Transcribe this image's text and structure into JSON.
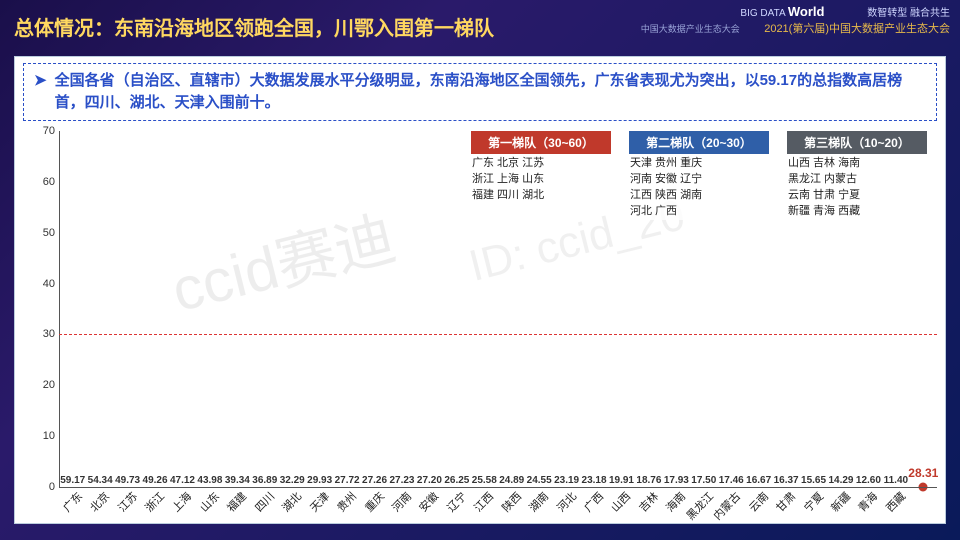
{
  "header": {
    "title": "总体情况：东南沿海地区领跑全国，川鄂入围第一梯队",
    "brand_prefix": "BIG DATA ",
    "brand_main": "World",
    "brand_sub": "中国大数据产业生态大会",
    "slogan": "数智转型 融合共生",
    "event": "2021(第六届)中国大数据产业生态大会"
  },
  "description": "全国各省（自治区、直辖市）大数据发展水平分级明显，东南沿海地区全国领先，广东省表现尤为突出，以59.17的总指数高居榜首，四川、湖北、天津入围前十。",
  "watermark1": "ccid赛迪",
  "watermark2": "ID: ccid_20",
  "chart": {
    "type": "bar",
    "ylim": [
      0,
      70
    ],
    "ytick_step": 10,
    "ref_line_value": 30,
    "avg_point": {
      "value": 28.31,
      "label": "28.31"
    },
    "tiers": [
      {
        "name": "第一梯队（30~60）",
        "color": "#c0392b",
        "provinces": "广东 北京 江苏\n浙江 上海 山东\n福建 四川 湖北"
      },
      {
        "name": "第二梯队（20~30）",
        "color": "#2f5fa8",
        "provinces": "天津 贵州 重庆\n河南 安徽 辽宁\n江西 陕西 湖南\n河北 广西"
      },
      {
        "name": "第三梯队（10~20）",
        "color": "#555b63",
        "provinces": "山西 吉林 海南\n黑龙江 内蒙古\n云南 甘肃 宁夏\n新疆 青海 西藏"
      }
    ],
    "tier1_color": "#c0392b",
    "tier1_alt_color": "#f1a93b",
    "tier2_color": "#2f5fa8",
    "tier3_color": "#7a3a9a",
    "bars": [
      {
        "label": "广东",
        "value": 59.17,
        "tier": 1,
        "alt": false
      },
      {
        "label": "北京",
        "value": 54.34,
        "tier": 1,
        "alt": false
      },
      {
        "label": "江苏",
        "value": 49.73,
        "tier": 1,
        "alt": false
      },
      {
        "label": "浙江",
        "value": 49.26,
        "tier": 1,
        "alt": false
      },
      {
        "label": "上海",
        "value": 47.12,
        "tier": 1,
        "alt": false
      },
      {
        "label": "山东",
        "value": 43.98,
        "tier": 1,
        "alt": false
      },
      {
        "label": "福建",
        "value": 39.34,
        "tier": 1,
        "alt": true
      },
      {
        "label": "四川",
        "value": 36.89,
        "tier": 1,
        "alt": true
      },
      {
        "label": "湖北",
        "value": 32.29,
        "tier": 1,
        "alt": true
      },
      {
        "label": "天津",
        "value": 29.93,
        "tier": 2
      },
      {
        "label": "贵州",
        "value": 27.72,
        "tier": 2
      },
      {
        "label": "重庆",
        "value": 27.26,
        "tier": 2
      },
      {
        "label": "河南",
        "value": 27.23,
        "tier": 2
      },
      {
        "label": "安徽",
        "value": 27.2,
        "tier": 2
      },
      {
        "label": "辽宁",
        "value": 26.25,
        "tier": 2
      },
      {
        "label": "江西",
        "value": 25.58,
        "tier": 2
      },
      {
        "label": "陕西",
        "value": 24.89,
        "tier": 2
      },
      {
        "label": "湖南",
        "value": 24.55,
        "tier": 2
      },
      {
        "label": "河北",
        "value": 23.19,
        "tier": 2
      },
      {
        "label": "广西",
        "value": 23.18,
        "tier": 2
      },
      {
        "label": "山西",
        "value": 19.91,
        "tier": 3
      },
      {
        "label": "吉林",
        "value": 18.76,
        "tier": 3
      },
      {
        "label": "海南",
        "value": 17.93,
        "tier": 3
      },
      {
        "label": "黑龙江",
        "value": 17.5,
        "tier": 3
      },
      {
        "label": "内蒙古",
        "value": 17.46,
        "tier": 3
      },
      {
        "label": "云南",
        "value": 16.67,
        "tier": 3
      },
      {
        "label": "甘肃",
        "value": 16.37,
        "tier": 3
      },
      {
        "label": "宁夏",
        "value": 15.65,
        "tier": 3
      },
      {
        "label": "新疆",
        "value": 14.29,
        "tier": 3
      },
      {
        "label": "青海",
        "value": 12.6,
        "tier": 3
      },
      {
        "label": "西藏",
        "value": 11.4,
        "tier": 3
      }
    ]
  }
}
